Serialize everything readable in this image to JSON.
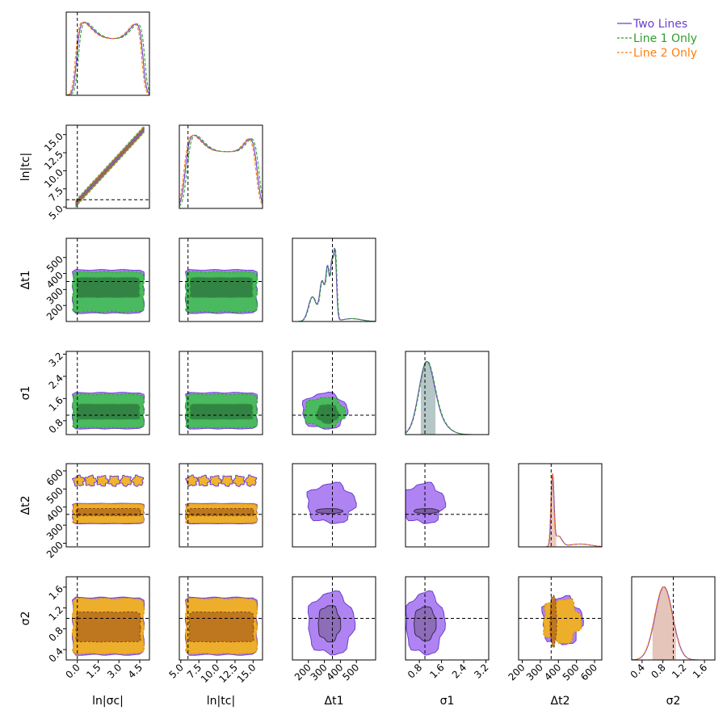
{
  "chart_data": {
    "type": "corner",
    "parameters": [
      {
        "label": "ln|σc|",
        "truth": 0.0,
        "lim": [
          -0.8,
          5.2
        ],
        "ticks": [
          0.0,
          1.5,
          3.0,
          4.5
        ],
        "tick_labels": [
          "0.0",
          "1.5",
          "3.0",
          "4.5"
        ]
      },
      {
        "label": "ln|tc|",
        "truth": 6.0,
        "lim": [
          4.8,
          16.3
        ],
        "ticks": [
          5.0,
          7.5,
          10.0,
          12.5,
          15.0
        ],
        "tick_labels": [
          "5.0",
          "7.5",
          "10.0",
          "12.5",
          "15.0"
        ]
      },
      {
        "label": "Δt1",
        "truth": 350,
        "lim": [
          100,
          620
        ],
        "ticks": [
          200,
          300,
          400,
          500
        ],
        "tick_labels": [
          "200",
          "300",
          "400",
          "500"
        ]
      },
      {
        "label": "σ1",
        "truth": 1.0,
        "lim": [
          0.3,
          3.3
        ],
        "ticks": [
          0.8,
          1.6,
          2.4,
          3.2
        ],
        "tick_labels": [
          "0.8",
          "1.6",
          "2.4",
          "3.2"
        ]
      },
      {
        "label": "Δt2",
        "truth": 360,
        "lim": [
          180,
          640
        ],
        "ticks": [
          200,
          300,
          400,
          500,
          600
        ],
        "tick_labels": [
          "200",
          "300",
          "400",
          "500",
          "600"
        ]
      },
      {
        "label": "σ2",
        "truth": 1.0,
        "lim": [
          0.2,
          1.8
        ],
        "ticks": [
          0.4,
          0.8,
          1.2,
          1.6
        ],
        "tick_labels": [
          "0.4",
          "0.8",
          "1.2",
          "1.6"
        ]
      }
    ],
    "series": [
      {
        "name": "Two Lines",
        "color": "#6a3fcf",
        "line": "solid",
        "fill": "#a16ef0"
      },
      {
        "name": "Line 1 Only",
        "color": "#2ca02c",
        "line": "dashed",
        "fill": "#3fbf4f"
      },
      {
        "name": "Line 2 Only",
        "color": "#ff7f0e",
        "line": "dashed",
        "fill": "#f0b020"
      }
    ],
    "legend_position": "top-right"
  }
}
